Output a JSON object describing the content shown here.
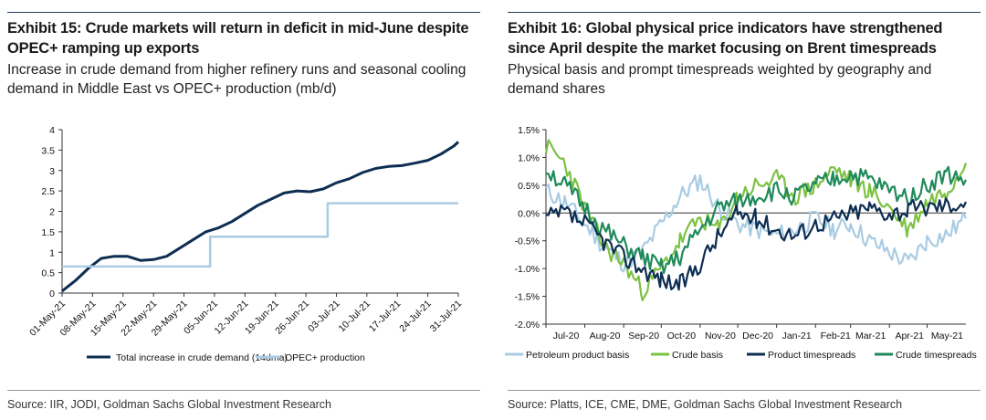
{
  "panels": [
    {
      "title": "Exhibit 15: Crude markets will return in deficit in mid-June despite OPEC+ ramping up exports",
      "subtitle": "Increase in crude demand from higher refinery runs and seasonal cooling demand in Middle East vs OPEC+ production (mb/d)",
      "source": "Source: IIR, JODI, Goldman Sachs Global Investment Research"
    },
    {
      "title": "Exhibit 16: Global physical price indicators have strengthened since April despite the market focusing on Brent timespreads",
      "subtitle": "Physical basis and prompt timespreads weighted by geography and demand shares",
      "source": "Source: Platts, ICE, CME, DME, Goldman Sachs Global Investment Research"
    }
  ],
  "chart_data": [
    {
      "type": "line",
      "ylim": [
        0,
        4
      ],
      "yticks": [
        "0",
        "0.5",
        "1",
        "1.5",
        "2",
        "2.5",
        "3",
        "3.5",
        "4"
      ],
      "xticks": [
        "01-May-21",
        "08-May-21",
        "15-May-21",
        "22-May-21",
        "29-May-21",
        "05-Jun-21",
        "12-Jun-21",
        "19-Jun-21",
        "26-Jun-21",
        "03-Jul-21",
        "10-Jul-21",
        "17-Jul-21",
        "24-Jul-21",
        "31-Jul-21"
      ],
      "x_start_day": 0,
      "x_end_day": 91,
      "legend_position": "bottom",
      "series": [
        {
          "name": "Total increase in crude demand (14dma)",
          "color": "#0d2d52",
          "x": [
            0,
            3,
            6,
            9,
            12,
            15,
            18,
            21,
            24,
            27,
            30,
            33,
            36,
            39,
            42,
            45,
            48,
            51,
            54,
            57,
            60,
            63,
            66,
            69,
            72,
            75,
            78,
            81,
            84,
            87,
            90,
            91
          ],
          "values": [
            0.05,
            0.3,
            0.6,
            0.85,
            0.9,
            0.9,
            0.8,
            0.82,
            0.9,
            1.1,
            1.3,
            1.5,
            1.6,
            1.75,
            1.95,
            2.15,
            2.3,
            2.45,
            2.5,
            2.48,
            2.55,
            2.7,
            2.8,
            2.95,
            3.05,
            3.1,
            3.12,
            3.18,
            3.25,
            3.4,
            3.6,
            3.7
          ]
        },
        {
          "name": "OPEC+ production",
          "color": "#a9cce3",
          "x": [
            0,
            34,
            34,
            61,
            61,
            91
          ],
          "values": [
            0.65,
            0.65,
            1.38,
            1.38,
            2.2,
            2.2
          ]
        }
      ]
    },
    {
      "type": "line",
      "ylim": [
        -2.0,
        1.5
      ],
      "yticks": [
        "1.5%",
        "1.0%",
        "0.5%",
        "0.0%",
        "-0.5%",
        "-1.0%",
        "-1.5%",
        "-2.0%"
      ],
      "xticks": [
        "Jul-20",
        "Aug-20",
        "Sep-20",
        "Oct-20",
        "Nov-20",
        "Dec-20",
        "Jan-21",
        "Feb-21",
        "Mar-21",
        "Apr-21",
        "May-21"
      ],
      "x_start": "2020-07-01",
      "x_end": "2021-06-01",
      "legend_position": "bottom",
      "series": [
        {
          "name": "Petroleum product basis",
          "color": "#a9cce3",
          "x": [
            "2020-07-01",
            "2020-07-16",
            "2020-08-01",
            "2020-08-16",
            "2020-09-01",
            "2020-09-16",
            "2020-10-01",
            "2020-10-16",
            "2020-11-01",
            "2020-11-16",
            "2020-12-01",
            "2020-12-16",
            "2021-01-01",
            "2021-01-16",
            "2021-02-01",
            "2021-02-16",
            "2021-03-01",
            "2021-03-16",
            "2021-04-01",
            "2021-04-16",
            "2021-05-01",
            "2021-05-16",
            "2021-06-01"
          ],
          "values": [
            0.4,
            0.2,
            -0.2,
            -0.6,
            -0.9,
            -0.7,
            -0.2,
            0.3,
            0.6,
            0.1,
            -0.2,
            -0.3,
            -0.4,
            -0.3,
            -0.1,
            -0.3,
            -0.2,
            -0.5,
            -0.7,
            -0.9,
            -0.5,
            -0.4,
            -0.1
          ]
        },
        {
          "name": "Crude basis",
          "color": "#7cc242",
          "x": [
            "2020-07-01",
            "2020-07-16",
            "2020-08-01",
            "2020-08-16",
            "2020-09-01",
            "2020-09-16",
            "2020-10-01",
            "2020-10-16",
            "2020-11-01",
            "2020-11-16",
            "2020-12-01",
            "2020-12-16",
            "2021-01-01",
            "2021-01-16",
            "2021-02-01",
            "2021-02-16",
            "2021-03-01",
            "2021-03-16",
            "2021-04-01",
            "2021-04-16",
            "2021-05-01",
            "2021-05-16",
            "2021-06-01"
          ],
          "values": [
            1.2,
            0.9,
            0.1,
            -0.6,
            -0.9,
            -1.4,
            -1.0,
            -0.5,
            -0.1,
            -0.3,
            0.3,
            0.5,
            0.6,
            0.3,
            0.5,
            0.8,
            0.6,
            0.4,
            0.1,
            -0.3,
            0.2,
            0.4,
            0.9
          ]
        },
        {
          "name": "Product timespreads",
          "color": "#0d2d52",
          "x": [
            "2020-07-01",
            "2020-07-16",
            "2020-08-01",
            "2020-08-16",
            "2020-09-01",
            "2020-09-16",
            "2020-10-01",
            "2020-10-16",
            "2020-11-01",
            "2020-11-16",
            "2020-12-01",
            "2020-12-16",
            "2021-01-01",
            "2021-01-16",
            "2021-02-01",
            "2021-02-16",
            "2021-03-01",
            "2021-03-16",
            "2021-04-01",
            "2021-04-16",
            "2021-05-01",
            "2021-05-16",
            "2021-06-01"
          ],
          "values": [
            -0.1,
            0.0,
            -0.2,
            -0.5,
            -0.8,
            -1.0,
            -1.2,
            -1.3,
            -0.9,
            -0.4,
            0.0,
            -0.1,
            -0.3,
            -0.4,
            -0.2,
            -0.1,
            0.0,
            0.1,
            0.0,
            0.05,
            0.1,
            0.15,
            0.2
          ]
        },
        {
          "name": "Crude timespreads",
          "color": "#1f8a5a",
          "x": [
            "2020-07-01",
            "2020-07-16",
            "2020-08-01",
            "2020-08-16",
            "2020-09-01",
            "2020-09-16",
            "2020-10-01",
            "2020-10-16",
            "2020-11-01",
            "2020-11-16",
            "2020-12-01",
            "2020-12-16",
            "2021-01-01",
            "2021-01-16",
            "2021-02-01",
            "2021-02-16",
            "2021-03-01",
            "2021-03-16",
            "2021-04-01",
            "2021-04-16",
            "2021-05-01",
            "2021-05-16",
            "2021-06-01"
          ],
          "values": [
            0.8,
            0.5,
            0.1,
            -0.3,
            -0.6,
            -0.8,
            -1.0,
            -0.8,
            -0.3,
            0.1,
            0.2,
            0.3,
            0.4,
            0.3,
            0.5,
            0.6,
            0.7,
            0.6,
            0.4,
            0.3,
            0.5,
            0.7,
            0.6
          ]
        }
      ]
    }
  ]
}
